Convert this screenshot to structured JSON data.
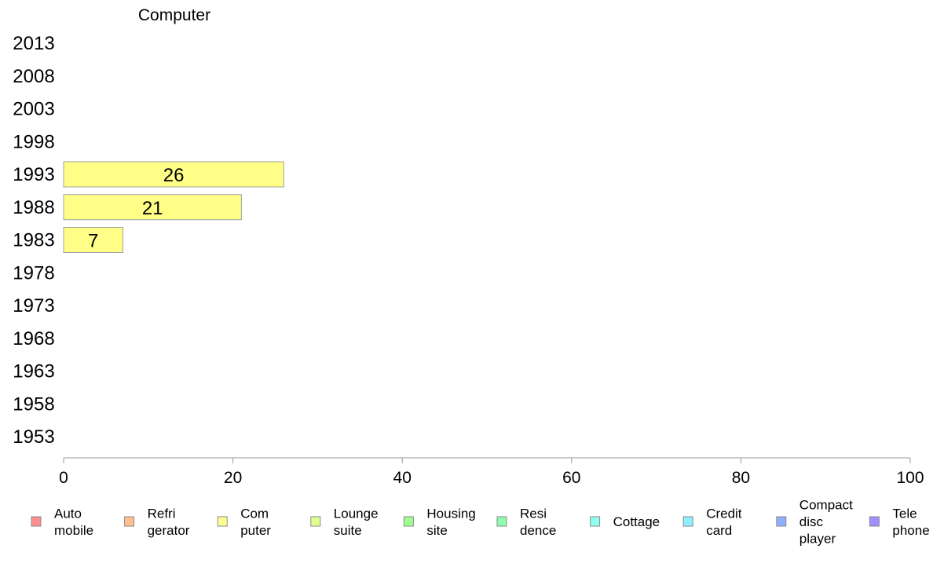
{
  "chart_data": {
    "type": "bar",
    "orientation": "horizontal",
    "title": "Computer",
    "xlabel": "",
    "ylabel": "",
    "xlim": [
      0,
      100
    ],
    "x_ticks": [
      0,
      20,
      40,
      60,
      80,
      100
    ],
    "categories": [
      "2013",
      "2008",
      "2003",
      "1998",
      "1993",
      "1988",
      "1983",
      "1978",
      "1973",
      "1968",
      "1963",
      "1958",
      "1953"
    ],
    "series": [
      {
        "name": "Computer",
        "color": "#ffff88",
        "values": [
          null,
          null,
          null,
          null,
          26,
          21,
          7,
          null,
          null,
          null,
          null,
          null,
          null
        ],
        "labels": [
          "",
          "",
          "",
          "",
          "26",
          "21",
          "7",
          "",
          "",
          "",
          "",
          "",
          ""
        ]
      }
    ],
    "grid": false,
    "legend_position": "bottom",
    "legend": [
      {
        "lines": [
          "Auto",
          "mobile"
        ],
        "color": "#ff8f8f"
      },
      {
        "lines": [
          "Refri",
          "gerator"
        ],
        "color": "#ffbf8f"
      },
      {
        "lines": [
          "Com",
          "puter"
        ],
        "color": "#ffff8f"
      },
      {
        "lines": [
          "Lounge",
          "suite"
        ],
        "color": "#dfff8f"
      },
      {
        "lines": [
          "Housing",
          "site"
        ],
        "color": "#9fff8f"
      },
      {
        "lines": [
          "Resi",
          "dence"
        ],
        "color": "#8fffaf"
      },
      {
        "lines": [
          "Cottage"
        ],
        "color": "#8fffef"
      },
      {
        "lines": [
          "Credit",
          "card"
        ],
        "color": "#8fefff"
      },
      {
        "lines": [
          "Compact",
          "disc",
          "player"
        ],
        "color": "#8fafff"
      },
      {
        "lines": [
          "Tele",
          "phone"
        ],
        "color": "#9f8fff"
      }
    ]
  }
}
